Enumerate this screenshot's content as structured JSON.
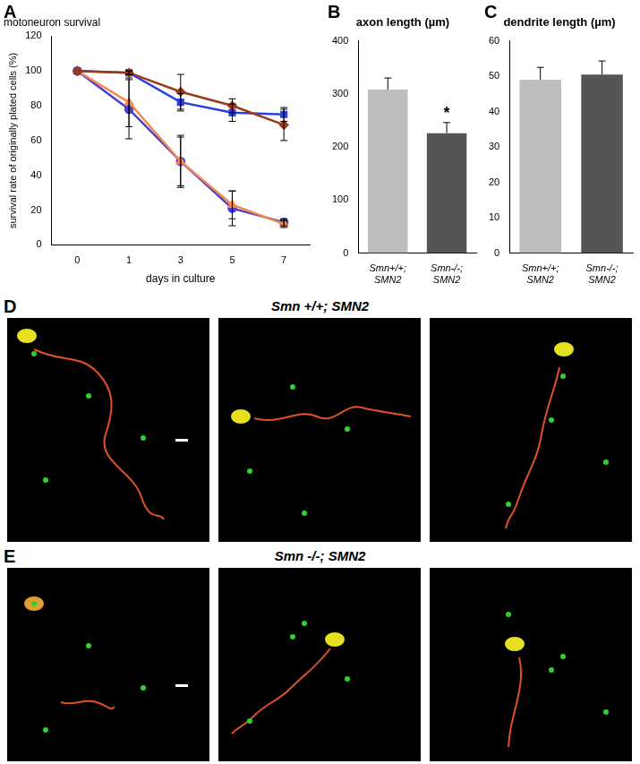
{
  "chart_data": [
    {
      "panel": "A",
      "type": "line",
      "title": "motoneuron survival",
      "x_label": "days in culture",
      "y_label": "survival rate of originally plated cells (%)",
      "categories": [
        "0",
        "1",
        "3",
        "5",
        "7"
      ],
      "ylim": [
        0,
        120
      ],
      "yticks": [
        0,
        20,
        40,
        60,
        80,
        100,
        120
      ],
      "grid": false,
      "series": [
        {
          "color": "#9b3a1a",
          "marker": "diamond",
          "values": [
            100,
            99,
            88,
            80,
            69
          ],
          "errors": [
            0,
            1,
            10,
            4,
            9
          ]
        },
        {
          "color": "#2a3fe0",
          "marker": "square",
          "values": [
            100,
            99,
            82,
            76,
            75
          ],
          "errors": [
            0,
            1,
            5,
            5,
            4
          ]
        },
        {
          "color": "#f5874a",
          "marker": "triangle",
          "values": [
            100,
            82,
            48,
            23,
            12
          ],
          "errors": [
            0,
            14,
            15,
            8,
            2
          ]
        },
        {
          "color": "#4a40d0",
          "marker": "circle",
          "values": [
            100,
            78,
            48,
            21,
            13
          ],
          "errors": [
            0,
            17,
            14,
            10,
            2
          ]
        }
      ]
    },
    {
      "panel": "B",
      "type": "bar",
      "title": "axon length (µm)",
      "categories": [
        "Smn+/+; SMN2",
        "Smn-/-; SMN2"
      ],
      "values": [
        308,
        226
      ],
      "errors": [
        22,
        20
      ],
      "colors": [
        "#bdbdbd",
        "#555555"
      ],
      "ylim": [
        0,
        400
      ],
      "yticks": [
        0,
        100,
        200,
        300,
        400
      ],
      "grid": false,
      "annotations": [
        {
          "text": "*",
          "category": "Smn-/-; SMN2"
        }
      ]
    },
    {
      "panel": "C",
      "type": "bar",
      "title": "dendrite length (µm)",
      "categories": [
        "Smn+/+; SMN2",
        "Smn-/-; SMN2"
      ],
      "values": [
        49,
        50.5
      ],
      "errors": [
        3.5,
        3.8
      ],
      "colors": [
        "#bdbdbd",
        "#555555"
      ],
      "ylim": [
        0,
        60
      ],
      "yticks": [
        0,
        10,
        20,
        30,
        40,
        50,
        60
      ],
      "grid": false
    }
  ],
  "image_panels": [
    {
      "panel": "D",
      "title": "Smn +/+; SMN2"
    },
    {
      "panel": "E",
      "title": "Smn -/-; SMN2"
    }
  ]
}
